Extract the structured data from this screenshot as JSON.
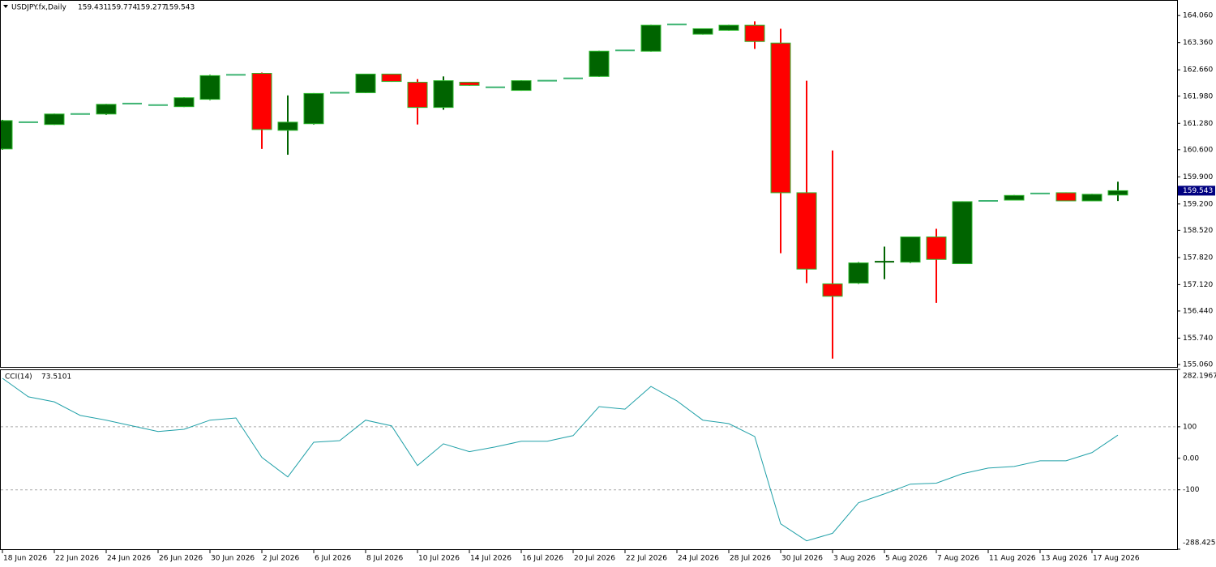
{
  "chart_data": [
    {
      "type": "candlestick",
      "title": "USDJPY.fx,Daily",
      "categories": [
        "18 Jun 2026",
        null,
        "22 Jun 2026",
        null,
        "24 Jun 2026",
        null,
        "26 Jun 2026",
        null,
        "30 Jun 2026",
        null,
        "2 Jul 2026",
        null,
        "6 Jul 2026",
        null,
        "8 Jul 2026",
        null,
        "10 Jul 2026",
        null,
        "14 Jul 2026",
        null,
        "16 Jul 2026",
        null,
        "20 Jul 2026",
        null,
        "22 Jul 2026",
        null,
        "24 Jul 2026",
        null,
        "28 Jul 2026",
        null,
        "30 Jul 2026",
        null,
        "3 Aug 2026",
        null,
        "5 Aug 2026",
        null,
        "7 Aug 2026",
        null,
        "11 Aug 2026",
        null,
        "13 Aug 2026",
        null,
        "17 Aug 2026",
        null
      ],
      "open": [
        160.62,
        161.31,
        161.25,
        161.52,
        161.52,
        161.79,
        161.75,
        161.71,
        161.9,
        162.53,
        162.57,
        161.1,
        161.27,
        162.07,
        162.07,
        162.55,
        162.34,
        161.69,
        162.34,
        162.21,
        162.13,
        162.38,
        162.44,
        162.49,
        163.16,
        163.14,
        163.83,
        163.58,
        163.68,
        163.81,
        163.35,
        159.49,
        157.14,
        157.16,
        157.7,
        157.7,
        158.35,
        157.66,
        159.28,
        159.3,
        159.47,
        159.49,
        159.28,
        159.431
      ],
      "high": [
        161.37,
        161.32,
        161.53,
        161.53,
        161.78,
        161.8,
        161.76,
        161.95,
        162.53,
        162.54,
        162.59,
        162.0,
        162.06,
        162.08,
        162.56,
        162.56,
        162.42,
        162.49,
        162.35,
        162.22,
        162.39,
        162.39,
        162.45,
        163.15,
        163.17,
        163.82,
        163.84,
        163.73,
        163.82,
        163.91,
        163.72,
        162.38,
        160.58,
        157.7,
        158.1,
        158.36,
        158.56,
        159.27,
        159.29,
        159.43,
        159.48,
        159.5,
        159.46,
        159.774
      ],
      "low": [
        160.6,
        161.3,
        161.24,
        161.51,
        161.5,
        161.78,
        161.74,
        161.7,
        161.88,
        162.52,
        160.62,
        160.47,
        161.25,
        162.06,
        162.06,
        162.35,
        161.25,
        161.63,
        162.25,
        162.2,
        162.12,
        162.37,
        162.43,
        162.48,
        163.15,
        163.13,
        163.82,
        163.57,
        163.67,
        163.2,
        157.93,
        157.16,
        155.21,
        157.14,
        157.26,
        157.68,
        156.65,
        157.65,
        159.27,
        159.29,
        159.46,
        159.27,
        159.27,
        159.277
      ],
      "close": [
        161.35,
        161.31,
        161.52,
        161.52,
        161.77,
        161.79,
        161.75,
        161.94,
        162.51,
        162.53,
        161.12,
        161.31,
        162.05,
        162.07,
        162.55,
        162.36,
        161.69,
        162.38,
        162.26,
        162.21,
        162.38,
        162.38,
        162.44,
        163.14,
        163.16,
        163.81,
        163.83,
        163.72,
        163.81,
        163.39,
        159.49,
        157.52,
        156.82,
        157.68,
        157.72,
        158.35,
        157.77,
        159.26,
        159.28,
        159.42,
        159.47,
        159.28,
        159.45,
        159.543
      ],
      "up_color": "#006400",
      "down_color": "#ff0000",
      "doji_color": "#3cb371",
      "border_color": "#2eb82e",
      "current_price_color": "#000080",
      "ylim": [
        154.997,
        164.44
      ],
      "yticks": [
        {
          "value": 164.06,
          "label": "164.060"
        },
        {
          "value": 163.36,
          "label": "163.360"
        },
        {
          "value": 162.66,
          "label": "162.660"
        },
        {
          "value": 161.98,
          "label": "161.980"
        },
        {
          "value": 161.28,
          "label": "161.280"
        },
        {
          "value": 160.6,
          "label": "160.600"
        },
        {
          "value": 159.9,
          "label": "159.900"
        },
        {
          "value": 159.2,
          "label": "159.200"
        },
        {
          "value": 158.52,
          "label": "158.520"
        },
        {
          "value": 157.82,
          "label": "157.820"
        },
        {
          "value": 157.12,
          "label": "157.120"
        },
        {
          "value": 156.44,
          "label": "156.440"
        },
        {
          "value": 155.74,
          "label": "155.740"
        },
        {
          "value": 155.06,
          "label": "155.060"
        }
      ]
    },
    {
      "type": "line",
      "name": "CCI(14)",
      "color": "#20a0a8",
      "values": [
        254,
        195,
        179,
        136,
        121,
        103,
        85,
        92,
        121,
        128,
        3,
        -59,
        51,
        56,
        121,
        103,
        -23,
        46,
        21,
        36,
        54,
        54,
        72,
        164,
        156,
        228,
        182,
        121,
        110,
        69,
        -208,
        -262,
        -238,
        -141,
        -113,
        -82,
        -79,
        -49,
        -31,
        -26,
        -8,
        -8,
        18,
        73.5101
      ],
      "ylim": [
        -288.4258,
        282.1967
      ],
      "yticks": [
        282.1967,
        100,
        {
          "value": 0,
          "label": "0.00"
        },
        -100,
        -288.4258
      ],
      "levels": [
        100,
        -100
      ]
    }
  ]
}
